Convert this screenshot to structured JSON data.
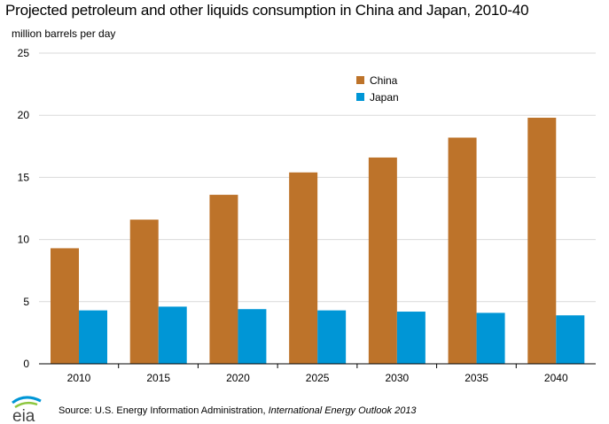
{
  "title": "Projected petroleum and other liquids consumption in China and Japan, 2010-40",
  "unit_label": "million barrels per day",
  "source": {
    "prefix": "Source: U.S. Energy Information Administration, ",
    "publication": "International Energy Outlook 2013"
  },
  "logo_text": "eia",
  "colors": {
    "China": "#BD732A",
    "Japan": "#0096D6",
    "grid": "#d9d9d9",
    "axis": "#000000"
  },
  "chart_data": {
    "type": "bar",
    "categories": [
      "2010",
      "2015",
      "2020",
      "2025",
      "2030",
      "2035",
      "2040"
    ],
    "series": [
      {
        "name": "China",
        "values": [
          9.3,
          11.6,
          13.6,
          15.4,
          16.6,
          18.2,
          19.8
        ]
      },
      {
        "name": "Japan",
        "values": [
          4.3,
          4.6,
          4.4,
          4.3,
          4.2,
          4.1,
          3.9
        ]
      }
    ],
    "ylim": [
      0,
      25
    ],
    "yticks": [
      0,
      5,
      10,
      15,
      20,
      25
    ],
    "ylabel": "million barrels per day",
    "grid": true,
    "legend_position": "top-right"
  }
}
